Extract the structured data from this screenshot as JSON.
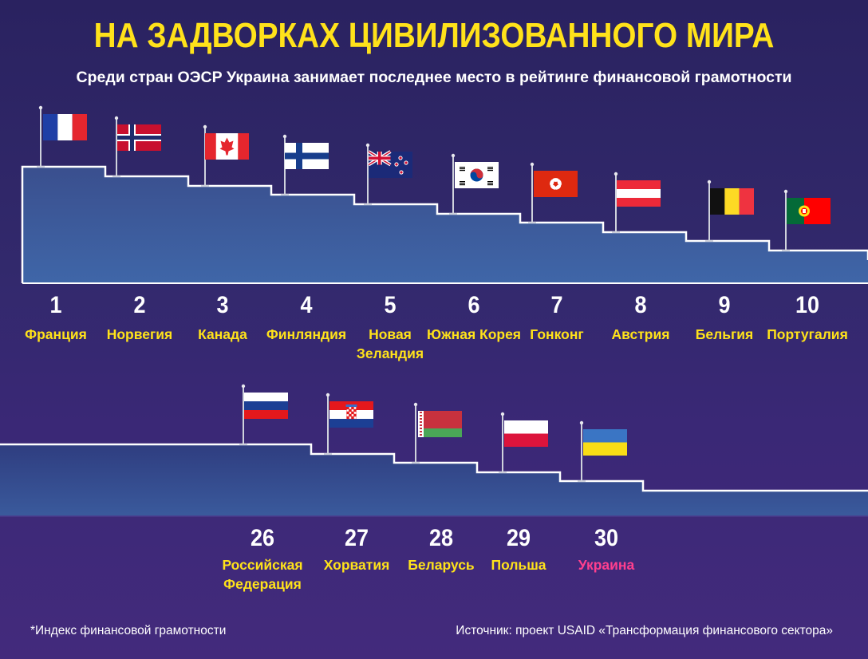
{
  "header": {
    "title": "НА ЗАДВОРКАХ ЦИВИЛИЗОВАННОГО МИРА",
    "subtitle": "Среди стран ОЭСР Украина занимает последнее место в рейтинге финансовой грамотности"
  },
  "chart_data": {
    "type": "bar",
    "ranks": [
      1,
      2,
      3,
      4,
      5,
      6,
      7,
      8,
      9,
      10,
      26,
      27,
      28,
      29,
      30
    ],
    "categories": [
      "Франция",
      "Норвегия",
      "Канада",
      "Финляндия",
      "Новая Зеландия",
      "Южная Корея",
      "Гонконг",
      "Австрия",
      "Бельгия",
      "Португалия",
      "Российская Федерация",
      "Хорватия",
      "Беларусь",
      "Польша",
      "Украина"
    ],
    "highlight": "Украина",
    "highlight_color": "#ff3f8e",
    "label_color": "#ffe21a",
    "flag_icons": [
      "france-flag-icon",
      "norway-flag-icon",
      "canada-flag-icon",
      "finland-flag-icon",
      "new-zealand-flag-icon",
      "south-korea-flag-icon",
      "hong-kong-flag-icon",
      "austria-flag-icon",
      "belgium-flag-icon",
      "portugal-flag-icon",
      "russia-flag-icon",
      "croatia-flag-icon",
      "belarus-flag-icon",
      "poland-flag-icon",
      "ukraine-flag-icon"
    ]
  },
  "top": {
    "ranks": [
      "1",
      "2",
      "3",
      "4",
      "5",
      "6",
      "7",
      "8",
      "9",
      "10"
    ],
    "labels": [
      "Франция",
      "Норвегия",
      "Канада",
      "Финляндия",
      "Новая Зеландия",
      "Южная Корея",
      "Гонконг",
      "Австрия",
      "Бельгия",
      "Португалия"
    ]
  },
  "bottom": {
    "ranks": [
      "26",
      "27",
      "28",
      "29",
      "30"
    ],
    "labels": [
      "Российская Федерация",
      "Хорватия",
      "Беларусь",
      "Польша",
      "Украина"
    ]
  },
  "footer": {
    "note": "*Индекс финансовой грамотности",
    "source": "Источник: проект USAID «Трансформация финансового сектора»"
  }
}
